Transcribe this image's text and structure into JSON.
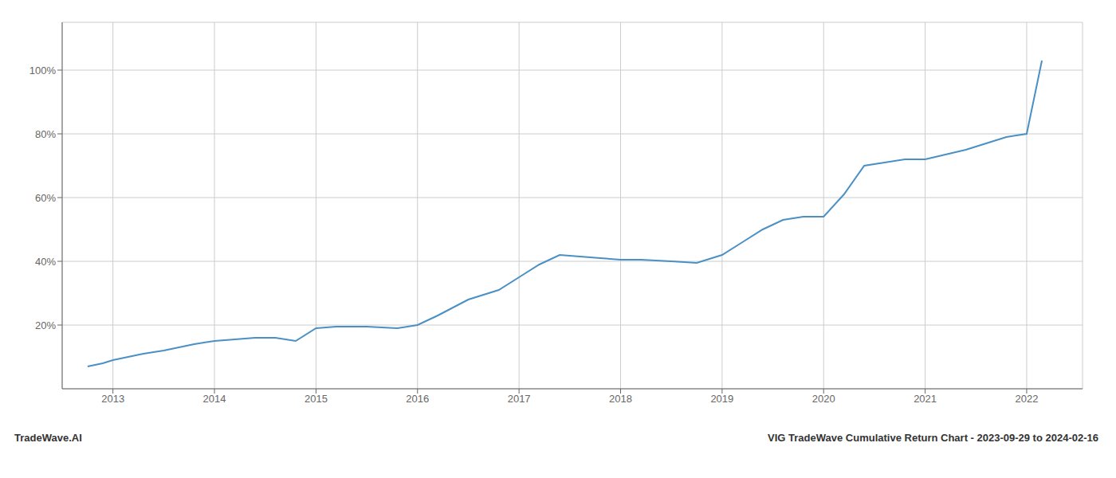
{
  "chart_data": {
    "type": "line",
    "title": "VIG TradeWave Cumulative Return Chart - 2023-09-29 to 2024-02-16",
    "annotations": [
      "TradeWave.AI"
    ],
    "x": [
      2012.75,
      2012.9,
      2013.0,
      2013.15,
      2013.3,
      2013.5,
      2013.65,
      2013.8,
      2014.0,
      2014.2,
      2014.4,
      2014.6,
      2014.8,
      2015.0,
      2015.2,
      2015.5,
      2015.8,
      2016.0,
      2016.2,
      2016.5,
      2016.8,
      2017.0,
      2017.2,
      2017.4,
      2017.6,
      2017.8,
      2018.0,
      2018.2,
      2018.5,
      2018.75,
      2019.0,
      2019.2,
      2019.4,
      2019.6,
      2019.8,
      2020.0,
      2020.2,
      2020.4,
      2020.6,
      2020.8,
      2021.0,
      2021.2,
      2021.4,
      2021.6,
      2021.8,
      2022.0,
      2022.15
    ],
    "values": [
      7,
      8,
      9,
      10,
      11,
      12,
      13,
      14,
      15,
      15.5,
      16,
      16,
      15,
      19,
      19.5,
      19.5,
      19,
      20,
      23,
      28,
      31,
      35,
      39,
      42,
      41.5,
      41,
      40.5,
      40.5,
      40,
      39.5,
      42,
      46,
      50,
      53,
      54,
      54,
      61,
      70,
      71,
      72,
      72,
      73.5,
      75,
      77,
      79,
      80,
      103
    ],
    "color": "#4a90c4",
    "xlim": [
      2012.5,
      2022.55
    ],
    "xticks": [
      2013,
      2014,
      2015,
      2016,
      2017,
      2018,
      2019,
      2020,
      2021,
      2022
    ],
    "ylim": [
      0,
      115
    ],
    "yticks": [
      {
        "value": 20,
        "label": "20%"
      },
      {
        "value": 40,
        "label": "40%"
      },
      {
        "value": 60,
        "label": "60%"
      },
      {
        "value": 80,
        "label": "80%"
      },
      {
        "value": 100,
        "label": "100%"
      }
    ],
    "grid": true
  }
}
